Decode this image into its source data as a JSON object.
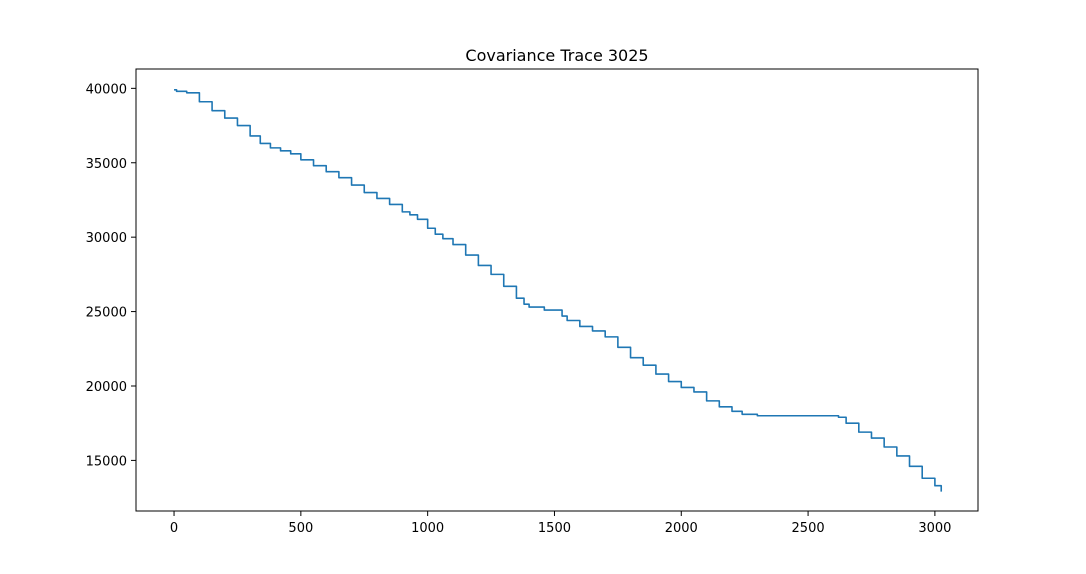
{
  "chart_data": {
    "type": "line",
    "title": "Covariance Trace 3025",
    "xlabel": "",
    "ylabel": "",
    "xlim": [
      -150,
      3170
    ],
    "ylim": [
      11600,
      41300
    ],
    "xticks": [
      0,
      500,
      1000,
      1500,
      2000,
      2500,
      3000
    ],
    "yticks": [
      15000,
      20000,
      25000,
      30000,
      35000,
      40000
    ],
    "xtick_labels": [
      "0",
      "500",
      "1000",
      "1500",
      "2000",
      "2500",
      "3000"
    ],
    "ytick_labels": [
      "15000",
      "20000",
      "25000",
      "30000",
      "35000",
      "40000"
    ],
    "grid": false,
    "legend": "none",
    "series_color": "#1f77b4",
    "series": [
      {
        "x": [
          0,
          10,
          50,
          100,
          150,
          200,
          250,
          300,
          340,
          380,
          420,
          460,
          500,
          550,
          600,
          650,
          700,
          750,
          800,
          850,
          900,
          930,
          960,
          1000,
          1030,
          1060,
          1100,
          1150,
          1200,
          1250,
          1300,
          1350,
          1380,
          1400,
          1440,
          1460,
          1510,
          1530,
          1550,
          1600,
          1650,
          1700,
          1750,
          1800,
          1850,
          1900,
          1950,
          2000,
          2050,
          2100,
          2150,
          2200,
          2240,
          2300,
          2400,
          2500,
          2600,
          2620,
          2650,
          2700,
          2750,
          2800,
          2850,
          2900,
          2950,
          3000,
          3025
        ],
        "y": [
          39900,
          39800,
          39700,
          39100,
          38500,
          38000,
          37500,
          36800,
          36300,
          36000,
          35800,
          35600,
          35200,
          34800,
          34400,
          34000,
          33500,
          33000,
          32600,
          32200,
          31700,
          31500,
          31200,
          30600,
          30200,
          29900,
          29500,
          28800,
          28100,
          27500,
          26700,
          25900,
          25500,
          25300,
          25300,
          25100,
          25100,
          24700,
          24400,
          24000,
          23700,
          23300,
          22600,
          21900,
          21400,
          20800,
          20300,
          19900,
          19600,
          19000,
          18600,
          18300,
          18100,
          18000,
          18000,
          18000,
          18000,
          17900,
          17500,
          16900,
          16500,
          15900,
          15300,
          14600,
          13800,
          13300,
          12900
        ]
      }
    ]
  }
}
